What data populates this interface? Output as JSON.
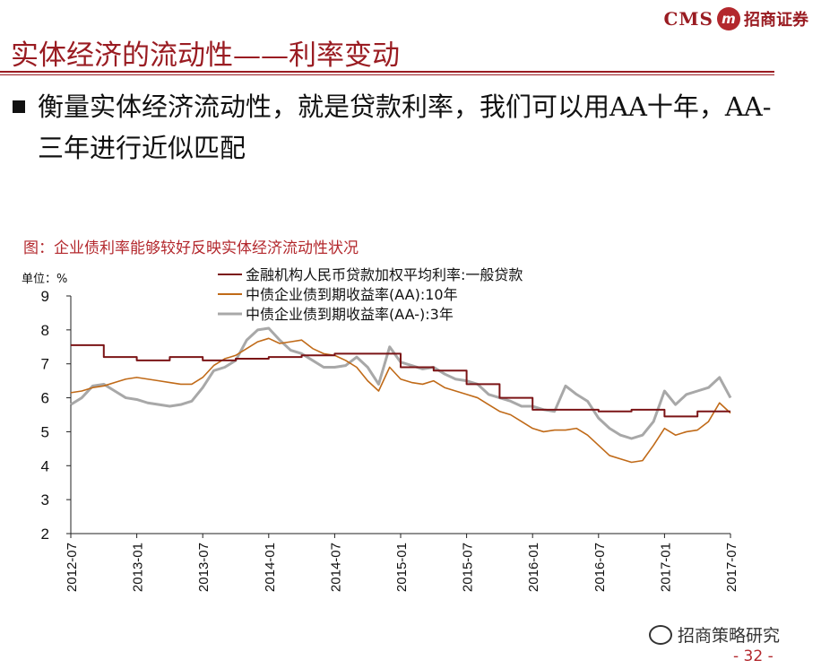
{
  "header": {
    "logo_left": "CMS",
    "logo_badge": "m",
    "logo_right": "招商证券"
  },
  "slide": {
    "title": "实体经济的流动性——利率变动",
    "bullet": "衡量实体经济流动性，就是贷款利率，我们可以用AA十年，AA-三年进行近似匹配"
  },
  "figure_caption": "图：企业债利率能够较好反映实体经济流动性状况",
  "chart_unit": "单位：%",
  "footer": {
    "brand": "招商策略研究",
    "page": "- 32 -"
  },
  "colors": {
    "loan": "#7b1416",
    "aa10": "#c06a18",
    "aa3": "#a8a8a8",
    "accent": "#9a1c22"
  },
  "chart_data": {
    "type": "line",
    "title": "",
    "xlabel": "",
    "ylabel": "",
    "ylim": [
      2,
      9
    ],
    "yticks": [
      "2",
      "3",
      "4",
      "5",
      "6",
      "7",
      "8",
      "9"
    ],
    "xlim": [
      "2012-07",
      "2017-07"
    ],
    "xticks": [
      "2012-07",
      "2013-01",
      "2013-07",
      "2014-01",
      "2014-07",
      "2015-01",
      "2015-07",
      "2016-01",
      "2016-07",
      "2017-01",
      "2017-07"
    ],
    "grid": false,
    "legend_position": "top-center",
    "series": [
      {
        "name": "金融机构人民币贷款加权平均利率:一般贷款",
        "style": "step",
        "points": [
          [
            "2012-07",
            7.55
          ],
          [
            "2012-10",
            7.2
          ],
          [
            "2013-01",
            7.1
          ],
          [
            "2013-04",
            7.2
          ],
          [
            "2013-07",
            7.1
          ],
          [
            "2013-10",
            7.15
          ],
          [
            "2014-01",
            7.2
          ],
          [
            "2014-04",
            7.25
          ],
          [
            "2014-07",
            7.3
          ],
          [
            "2014-10",
            7.3
          ],
          [
            "2015-01",
            6.9
          ],
          [
            "2015-04",
            6.8
          ],
          [
            "2015-07",
            6.4
          ],
          [
            "2015-10",
            6.0
          ],
          [
            "2016-01",
            5.65
          ],
          [
            "2016-04",
            5.65
          ],
          [
            "2016-07",
            5.6
          ],
          [
            "2016-10",
            5.65
          ],
          [
            "2017-01",
            5.45
          ],
          [
            "2017-04",
            5.6
          ],
          [
            "2017-07",
            5.6
          ]
        ]
      },
      {
        "name": "中债企业债到期收益率(AA):10年",
        "style": "line",
        "points": [
          [
            "2012-07",
            6.15
          ],
          [
            "2012-08",
            6.2
          ],
          [
            "2012-09",
            6.3
          ],
          [
            "2012-10",
            6.35
          ],
          [
            "2012-11",
            6.45
          ],
          [
            "2012-12",
            6.55
          ],
          [
            "2013-01",
            6.6
          ],
          [
            "2013-02",
            6.55
          ],
          [
            "2013-03",
            6.5
          ],
          [
            "2013-04",
            6.45
          ],
          [
            "2013-05",
            6.4
          ],
          [
            "2013-06",
            6.4
          ],
          [
            "2013-07",
            6.6
          ],
          [
            "2013-08",
            6.95
          ],
          [
            "2013-09",
            7.15
          ],
          [
            "2013-10",
            7.25
          ],
          [
            "2013-11",
            7.45
          ],
          [
            "2013-12",
            7.65
          ],
          [
            "2014-01",
            7.75
          ],
          [
            "2014-02",
            7.6
          ],
          [
            "2014-03",
            7.65
          ],
          [
            "2014-04",
            7.7
          ],
          [
            "2014-05",
            7.45
          ],
          [
            "2014-06",
            7.3
          ],
          [
            "2014-07",
            7.25
          ],
          [
            "2014-08",
            7.1
          ],
          [
            "2014-09",
            6.9
          ],
          [
            "2014-10",
            6.5
          ],
          [
            "2014-11",
            6.2
          ],
          [
            "2014-12",
            6.9
          ],
          [
            "2015-01",
            6.55
          ],
          [
            "2015-02",
            6.45
          ],
          [
            "2015-03",
            6.4
          ],
          [
            "2015-04",
            6.5
          ],
          [
            "2015-05",
            6.3
          ],
          [
            "2015-06",
            6.2
          ],
          [
            "2015-07",
            6.1
          ],
          [
            "2015-08",
            6.0
          ],
          [
            "2015-09",
            5.8
          ],
          [
            "2015-10",
            5.6
          ],
          [
            "2015-11",
            5.5
          ],
          [
            "2015-12",
            5.3
          ],
          [
            "2016-01",
            5.1
          ],
          [
            "2016-02",
            5.0
          ],
          [
            "2016-03",
            5.05
          ],
          [
            "2016-04",
            5.05
          ],
          [
            "2016-05",
            5.1
          ],
          [
            "2016-06",
            4.9
          ],
          [
            "2016-07",
            4.6
          ],
          [
            "2016-08",
            4.3
          ],
          [
            "2016-09",
            4.2
          ],
          [
            "2016-10",
            4.1
          ],
          [
            "2016-11",
            4.15
          ],
          [
            "2016-12",
            4.6
          ],
          [
            "2017-01",
            5.1
          ],
          [
            "2017-02",
            4.9
          ],
          [
            "2017-03",
            5.0
          ],
          [
            "2017-04",
            5.05
          ],
          [
            "2017-05",
            5.3
          ],
          [
            "2017-06",
            5.85
          ],
          [
            "2017-07",
            5.55
          ]
        ]
      },
      {
        "name": "中债企业债到期收益率(AA-):3年",
        "style": "line",
        "points": [
          [
            "2012-07",
            5.8
          ],
          [
            "2012-08",
            6.0
          ],
          [
            "2012-09",
            6.35
          ],
          [
            "2012-10",
            6.4
          ],
          [
            "2012-11",
            6.2
          ],
          [
            "2012-12",
            6.0
          ],
          [
            "2013-01",
            5.95
          ],
          [
            "2013-02",
            5.85
          ],
          [
            "2013-03",
            5.8
          ],
          [
            "2013-04",
            5.75
          ],
          [
            "2013-05",
            5.8
          ],
          [
            "2013-06",
            5.9
          ],
          [
            "2013-07",
            6.3
          ],
          [
            "2013-08",
            6.8
          ],
          [
            "2013-09",
            6.9
          ],
          [
            "2013-10",
            7.1
          ],
          [
            "2013-11",
            7.7
          ],
          [
            "2013-12",
            8.0
          ],
          [
            "2014-01",
            8.05
          ],
          [
            "2014-02",
            7.7
          ],
          [
            "2014-03",
            7.4
          ],
          [
            "2014-04",
            7.3
          ],
          [
            "2014-05",
            7.1
          ],
          [
            "2014-06",
            6.9
          ],
          [
            "2014-07",
            6.9
          ],
          [
            "2014-08",
            6.95
          ],
          [
            "2014-09",
            7.2
          ],
          [
            "2014-10",
            6.9
          ],
          [
            "2014-11",
            6.4
          ],
          [
            "2014-12",
            7.5
          ],
          [
            "2015-01",
            7.05
          ],
          [
            "2015-02",
            6.95
          ],
          [
            "2015-03",
            6.85
          ],
          [
            "2015-04",
            6.9
          ],
          [
            "2015-05",
            6.7
          ],
          [
            "2015-06",
            6.55
          ],
          [
            "2015-07",
            6.5
          ],
          [
            "2015-08",
            6.4
          ],
          [
            "2015-09",
            6.1
          ],
          [
            "2015-10",
            6.0
          ],
          [
            "2015-11",
            5.9
          ],
          [
            "2015-12",
            5.75
          ],
          [
            "2016-01",
            5.75
          ],
          [
            "2016-02",
            5.65
          ],
          [
            "2016-03",
            5.6
          ],
          [
            "2016-04",
            6.35
          ],
          [
            "2016-05",
            6.1
          ],
          [
            "2016-06",
            5.9
          ],
          [
            "2016-07",
            5.4
          ],
          [
            "2016-08",
            5.1
          ],
          [
            "2016-09",
            4.9
          ],
          [
            "2016-10",
            4.8
          ],
          [
            "2016-11",
            4.9
          ],
          [
            "2016-12",
            5.3
          ],
          [
            "2017-01",
            6.2
          ],
          [
            "2017-02",
            5.8
          ],
          [
            "2017-03",
            6.1
          ],
          [
            "2017-04",
            6.2
          ],
          [
            "2017-05",
            6.3
          ],
          [
            "2017-06",
            6.6
          ],
          [
            "2017-07",
            6.0
          ]
        ]
      }
    ]
  }
}
